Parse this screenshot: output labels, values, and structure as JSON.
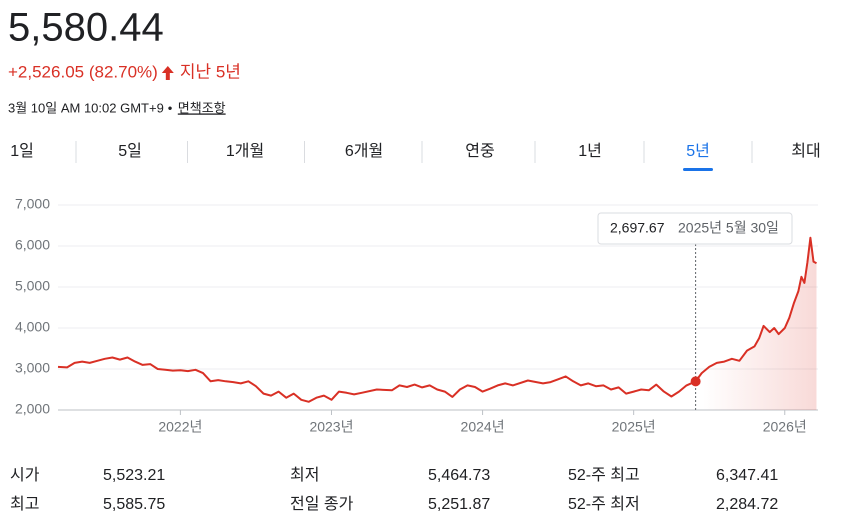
{
  "header": {
    "price": "5,580.44",
    "change": "+2,526.05 (82.70%)",
    "period": "지난 5년",
    "timestamp": "3월 10일 AM 10:02 GMT+9",
    "separator": "•",
    "disclaimer": "면책조항"
  },
  "tabs": [
    "1일",
    "5일",
    "1개월",
    "6개월",
    "연중",
    "1년",
    "5년",
    "최대"
  ],
  "selected_tab": "5년",
  "chart_data": {
    "type": "line",
    "color": "#d93025",
    "x": [
      2021.19,
      2021.25,
      2021.3,
      2021.35,
      2021.4,
      2021.45,
      2021.5,
      2021.55,
      2021.6,
      2021.65,
      2021.7,
      2021.75,
      2021.8,
      2021.85,
      2021.9,
      2021.95,
      2022.0,
      2022.05,
      2022.1,
      2022.15,
      2022.2,
      2022.25,
      2022.3,
      2022.35,
      2022.4,
      2022.45,
      2022.5,
      2022.55,
      2022.6,
      2022.65,
      2022.7,
      2022.75,
      2022.8,
      2022.85,
      2022.9,
      2022.95,
      2023.0,
      2023.05,
      2023.1,
      2023.15,
      2023.2,
      2023.3,
      2023.4,
      2023.45,
      2023.5,
      2023.55,
      2023.6,
      2023.65,
      2023.7,
      2023.75,
      2023.8,
      2023.85,
      2023.9,
      2023.95,
      2024.0,
      2024.05,
      2024.1,
      2024.15,
      2024.2,
      2024.3,
      2024.4,
      2024.45,
      2024.5,
      2024.55,
      2024.6,
      2024.65,
      2024.7,
      2024.75,
      2024.8,
      2024.85,
      2024.9,
      2024.95,
      2025.0,
      2025.05,
      2025.1,
      2025.15,
      2025.2,
      2025.25,
      2025.3,
      2025.35,
      2025.41,
      2025.45,
      2025.5,
      2025.55,
      2025.6,
      2025.65,
      2025.7,
      2025.75,
      2025.8,
      2025.83,
      2025.86,
      2025.9,
      2025.93,
      2025.96,
      2026.0,
      2026.03,
      2026.06,
      2026.09,
      2026.11,
      2026.13,
      2026.15,
      2026.17,
      2026.19,
      2026.21
    ],
    "values": [
      3050,
      3040,
      3150,
      3180,
      3150,
      3200,
      3250,
      3280,
      3230,
      3280,
      3180,
      3100,
      3120,
      3000,
      2980,
      2960,
      2970,
      2950,
      2980,
      2900,
      2700,
      2730,
      2700,
      2680,
      2650,
      2700,
      2580,
      2400,
      2350,
      2450,
      2300,
      2400,
      2250,
      2200,
      2300,
      2350,
      2250,
      2450,
      2420,
      2380,
      2420,
      2500,
      2480,
      2600,
      2560,
      2620,
      2550,
      2600,
      2500,
      2450,
      2320,
      2500,
      2600,
      2560,
      2450,
      2520,
      2600,
      2650,
      2600,
      2720,
      2650,
      2680,
      2750,
      2820,
      2700,
      2600,
      2650,
      2580,
      2600,
      2500,
      2550,
      2400,
      2450,
      2500,
      2480,
      2620,
      2450,
      2330,
      2450,
      2600,
      2697.67,
      2900,
      3050,
      3150,
      3180,
      3250,
      3200,
      3450,
      3550,
      3750,
      4050,
      3900,
      4000,
      3850,
      4000,
      4250,
      4600,
      4900,
      5250,
      5100,
      5600,
      6200,
      5620,
      5580.44
    ],
    "xlim": [
      2021.19,
      2026.22
    ],
    "ylim": [
      2000,
      7000
    ],
    "xticks": [
      {
        "value": 2022,
        "label": "2022년"
      },
      {
        "value": 2023,
        "label": "2023년"
      },
      {
        "value": 2024,
        "label": "2024년"
      },
      {
        "value": 2025,
        "label": "2025년"
      },
      {
        "value": 2026,
        "label": "2026년"
      }
    ],
    "yticks": [
      {
        "value": 2000,
        "label": "2,000"
      },
      {
        "value": 3000,
        "label": "3,000"
      },
      {
        "value": 4000,
        "label": "4,000"
      },
      {
        "value": 5000,
        "label": "5,000"
      },
      {
        "value": 6000,
        "label": "6,000"
      },
      {
        "value": 7000,
        "label": "7,000"
      }
    ],
    "grid": true,
    "tooltip": {
      "x": 2025.41,
      "value": 2697.67,
      "value_label": "2,697.67",
      "date": "2025년 5월 30일"
    }
  },
  "stats": {
    "rows": [
      [
        "시가",
        "5,523.21",
        "최저",
        "5,464.73",
        "52-주 최고",
        "6,347.41"
      ],
      [
        "최고",
        "5,585.75",
        "전일 종가",
        "5,251.87",
        "52-주 최저",
        "2,284.72"
      ]
    ]
  }
}
